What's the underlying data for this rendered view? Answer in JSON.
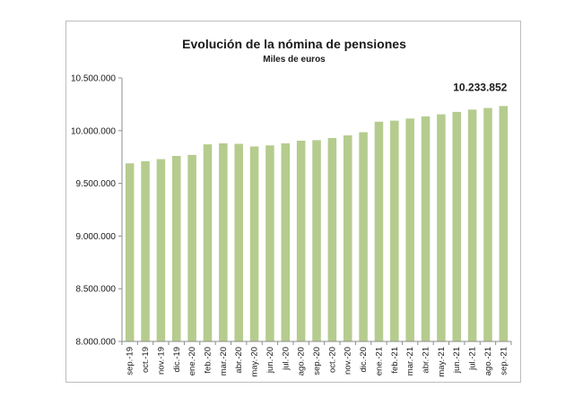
{
  "chart_data": {
    "type": "bar",
    "title": "Evolución de la nómina de pensiones",
    "subtitle": "Miles de euros",
    "xlabel": "",
    "ylabel": "",
    "ylim": [
      8000000,
      10500000
    ],
    "yticks": [
      8000000,
      8500000,
      9000000,
      9500000,
      10000000,
      10500000
    ],
    "ytick_labels": [
      "8.000.000",
      "8.500.000",
      "9.000.000",
      "9.500.000",
      "10.000.000",
      "10.500.000"
    ],
    "grid": false,
    "bar_color": "#b5cc8e",
    "categories": [
      "sep.-19",
      "oct.-19",
      "nov.-19",
      "dic.-19",
      "ene.-20",
      "feb.-20",
      "mar.-20",
      "abr.-20",
      "may.-20",
      "jun.-20",
      "jul.-20",
      "ago.-20",
      "sep.-20",
      "oct.-20",
      "nov.-20",
      "dic.-20",
      "ene.-21",
      "feb.-21",
      "mar.-21",
      "abr.-21",
      "may.-21",
      "jun.-21",
      "jul.-21",
      "ago.-21",
      "sep.-21"
    ],
    "values": [
      9690000,
      9710000,
      9730000,
      9760000,
      9770000,
      9870000,
      9880000,
      9875000,
      9850000,
      9860000,
      9880000,
      9905000,
      9910000,
      9930000,
      9955000,
      9985000,
      10085000,
      10095000,
      10115000,
      10135000,
      10155000,
      10178000,
      10200000,
      10215000,
      10233852
    ],
    "annotation": "10.233.852"
  }
}
